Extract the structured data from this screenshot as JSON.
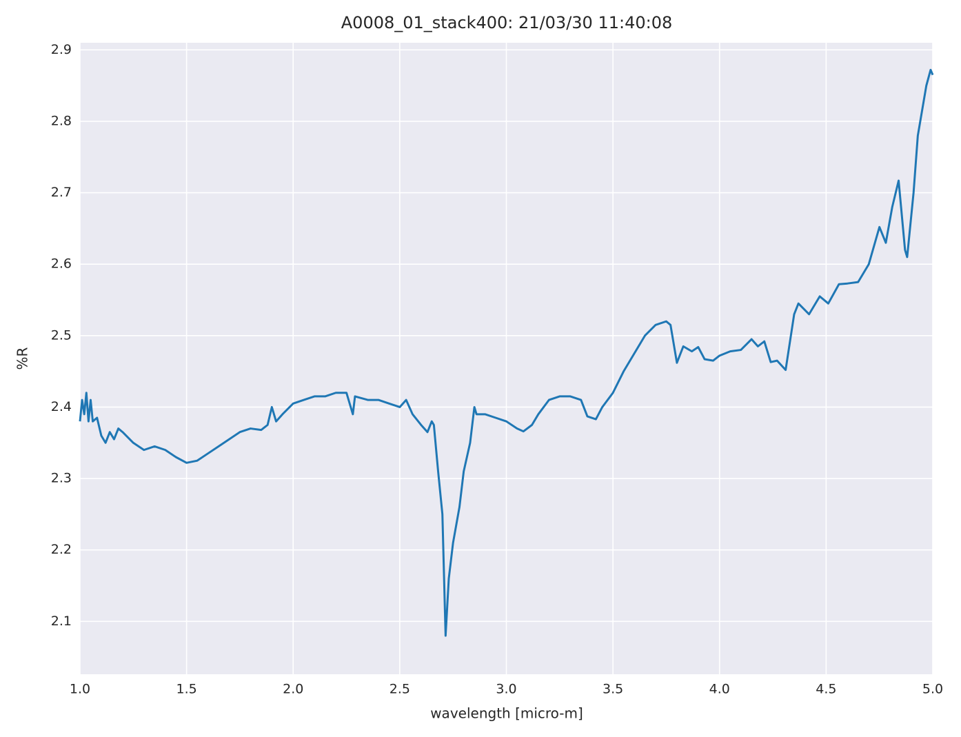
{
  "chart_data": {
    "type": "line",
    "title": "A0008_01_stack400:  21/03/30 11:40:08",
    "xlabel": "wavelength [micro-m]",
    "ylabel": "%R",
    "color": "#1f77b4",
    "grid": true,
    "xlim": [
      1,
      5
    ],
    "ylim": [
      2.026,
      2.91
    ],
    "xticks": [
      {
        "value": 1,
        "label": "1.0"
      },
      1.5,
      {
        "value": 2,
        "label": "2.0"
      },
      2.5,
      {
        "value": 3,
        "label": "3.0"
      },
      3.5,
      {
        "value": 4,
        "label": "4.0"
      },
      4.5,
      {
        "value": 5,
        "label": "5.0"
      }
    ],
    "yticks": [
      2.1,
      2.2,
      2.3,
      2.4,
      2.5,
      2.6,
      2.7,
      2.8,
      2.9
    ],
    "x": [
      1.0,
      1.01,
      1.02,
      1.03,
      1.04,
      1.05,
      1.06,
      1.08,
      1.1,
      1.12,
      1.14,
      1.16,
      1.18,
      1.2,
      1.25,
      1.3,
      1.35,
      1.4,
      1.45,
      1.5,
      1.55,
      1.6,
      1.65,
      1.7,
      1.75,
      1.8,
      1.85,
      1.88,
      1.9,
      1.92,
      1.95,
      2.0,
      2.05,
      2.1,
      2.15,
      2.2,
      2.25,
      2.28,
      2.29,
      2.35,
      2.4,
      2.45,
      2.5,
      2.53,
      2.56,
      2.6,
      2.63,
      2.65,
      2.66,
      2.68,
      2.7,
      2.715,
      2.73,
      2.75,
      2.78,
      2.8,
      2.83,
      2.85,
      2.86,
      2.9,
      2.95,
      3.0,
      3.05,
      3.08,
      3.12,
      3.15,
      3.2,
      3.25,
      3.3,
      3.35,
      3.38,
      3.42,
      3.45,
      3.5,
      3.55,
      3.6,
      3.65,
      3.7,
      3.75,
      3.77,
      3.8,
      3.83,
      3.87,
      3.9,
      3.93,
      3.97,
      4.0,
      4.05,
      4.1,
      4.15,
      4.18,
      4.21,
      4.24,
      4.27,
      4.31,
      4.35,
      4.37,
      4.42,
      4.47,
      4.51,
      4.56,
      4.6,
      4.65,
      4.7,
      4.75,
      4.78,
      4.81,
      4.84,
      4.87,
      4.88,
      4.91,
      4.93,
      4.97,
      4.99,
      5.0
    ],
    "values": [
      2.38,
      2.41,
      2.39,
      2.42,
      2.38,
      2.41,
      2.38,
      2.385,
      2.36,
      2.35,
      2.365,
      2.355,
      2.37,
      2.365,
      2.35,
      2.34,
      2.345,
      2.34,
      2.33,
      2.322,
      2.325,
      2.335,
      2.345,
      2.355,
      2.365,
      2.37,
      2.368,
      2.375,
      2.4,
      2.38,
      2.39,
      2.405,
      2.41,
      2.415,
      2.415,
      2.42,
      2.42,
      2.39,
      2.415,
      2.41,
      2.41,
      2.405,
      2.4,
      2.41,
      2.39,
      2.375,
      2.365,
      2.38,
      2.375,
      2.31,
      2.25,
      2.08,
      2.16,
      2.21,
      2.26,
      2.31,
      2.35,
      2.4,
      2.39,
      2.39,
      2.385,
      2.38,
      2.37,
      2.366,
      2.375,
      2.39,
      2.41,
      2.415,
      2.415,
      2.41,
      2.387,
      2.383,
      2.4,
      2.42,
      2.45,
      2.475,
      2.5,
      2.515,
      2.52,
      2.515,
      2.462,
      2.485,
      2.478,
      2.484,
      2.467,
      2.465,
      2.472,
      2.478,
      2.48,
      2.495,
      2.485,
      2.492,
      2.463,
      2.465,
      2.452,
      2.53,
      2.545,
      2.53,
      2.555,
      2.545,
      2.572,
      2.573,
      2.575,
      2.6,
      2.652,
      2.63,
      2.68,
      2.717,
      2.62,
      2.61,
      2.7,
      2.78,
      2.85,
      2.872,
      2.865
    ]
  }
}
